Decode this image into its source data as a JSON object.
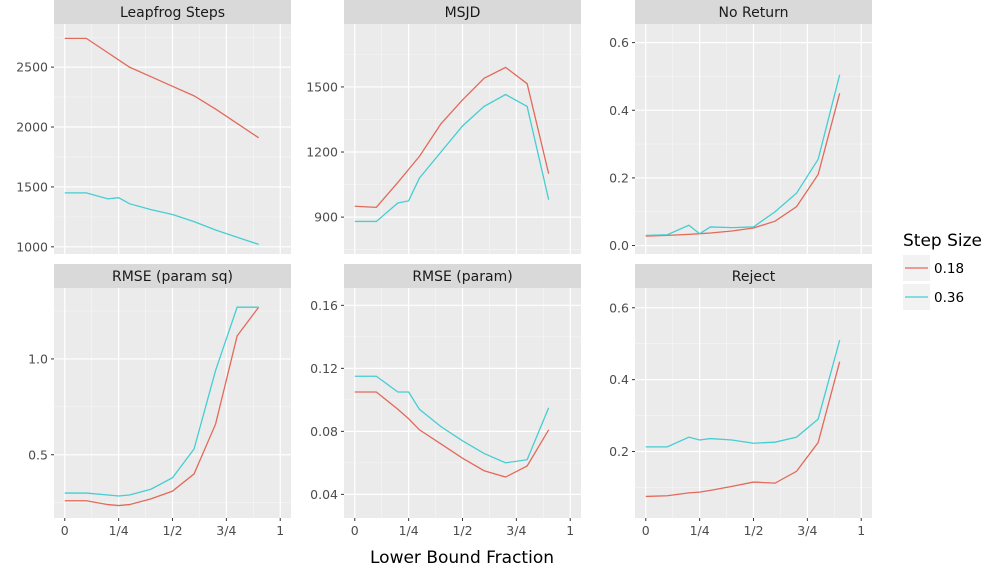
{
  "chart_data": {
    "type": "line",
    "xlabel": "Lower Bound Fraction",
    "x_tick_labels": [
      "0",
      "1/4",
      "1/2",
      "3/4",
      "1"
    ],
    "x_ticks": [
      0,
      0.25,
      0.5,
      0.75,
      1
    ],
    "xlim": [
      -0.05,
      1.05
    ],
    "grid": true,
    "legend": {
      "title": "Step Size",
      "position": "right",
      "entries": [
        "0.18",
        "0.36"
      ]
    },
    "colors": {
      "0.18": "#E26A5B",
      "0.36": "#45CDD2"
    },
    "x": [
      0,
      0.1,
      0.2,
      0.25,
      0.3,
      0.4,
      0.5,
      0.6,
      0.7,
      0.8,
      0.9
    ],
    "panels": [
      {
        "title": "Leapfrog Steps",
        "ylim": [
          940,
          2860
        ],
        "y_ticks": [
          1000,
          1500,
          2000,
          2500
        ],
        "y_tick_labels": [
          "1000",
          "1500",
          "2000",
          "2500"
        ],
        "series": [
          {
            "name": "0.18",
            "values": [
              2740,
              2740,
              2620,
              2560,
              2500,
              2420,
              2340,
              2260,
              2150,
              2030,
              1910
            ]
          },
          {
            "name": "0.36",
            "values": [
              1450,
              1450,
              1400,
              1410,
              1360,
              1310,
              1270,
              1210,
              1140,
              1080,
              1020
            ]
          }
        ]
      },
      {
        "title": "MSJD",
        "ylim": [
          730,
          1790
        ],
        "y_ticks": [
          900,
          1200,
          1500
        ],
        "y_tick_labels": [
          "900",
          "1200",
          "1500"
        ],
        "series": [
          {
            "name": "0.18",
            "values": [
              950,
              945,
              1060,
              1120,
              1180,
              1330,
              1440,
              1540,
              1590,
              1515,
              1100
            ]
          },
          {
            "name": "0.36",
            "values": [
              880,
              880,
              965,
              975,
              1080,
              1200,
              1320,
              1410,
              1465,
              1410,
              980
            ]
          }
        ]
      },
      {
        "title": "No Return",
        "ylim": [
          -0.025,
          0.655
        ],
        "y_ticks": [
          0.0,
          0.2,
          0.4,
          0.6
        ],
        "y_tick_labels": [
          "0.0",
          "0.2",
          "0.4",
          "0.6"
        ],
        "series": [
          {
            "name": "0.18",
            "values": [
              0.028,
              0.03,
              0.033,
              0.035,
              0.037,
              0.043,
              0.052,
              0.072,
              0.115,
              0.21,
              0.45
            ]
          },
          {
            "name": "0.36",
            "values": [
              0.03,
              0.032,
              0.06,
              0.035,
              0.055,
              0.053,
              0.055,
              0.1,
              0.155,
              0.255,
              0.505
            ]
          }
        ]
      },
      {
        "title": "RMSE (param sq)",
        "ylim": [
          0.17,
          1.37
        ],
        "y_ticks": [
          0.5,
          1.0
        ],
        "y_tick_labels": [
          "0.5",
          "1.0"
        ],
        "series": [
          {
            "name": "0.18",
            "values": [
              0.26,
              0.26,
              0.24,
              0.235,
              0.24,
              0.27,
              0.31,
              0.4,
              0.66,
              1.12,
              1.27
            ]
          },
          {
            "name": "0.36",
            "values": [
              0.3,
              0.3,
              0.29,
              0.285,
              0.29,
              0.32,
              0.38,
              0.53,
              0.94,
              1.27,
              1.27
            ]
          }
        ]
      },
      {
        "title": "RMSE (param)",
        "ylim": [
          0.025,
          0.171
        ],
        "y_ticks": [
          0.04,
          0.08,
          0.12,
          0.16
        ],
        "y_tick_labels": [
          "0.04",
          "0.08",
          "0.12",
          "0.16"
        ],
        "series": [
          {
            "name": "0.18",
            "values": [
              0.105,
              0.105,
              0.094,
              0.088,
              0.081,
              0.072,
              0.063,
              0.055,
              0.051,
              0.058,
              0.081
            ]
          },
          {
            "name": "0.36",
            "values": [
              0.115,
              0.115,
              0.105,
              0.105,
              0.094,
              0.083,
              0.074,
              0.066,
              0.06,
              0.062,
              0.095
            ]
          }
        ]
      },
      {
        "title": "Reject",
        "ylim": [
          0.015,
          0.655
        ],
        "y_ticks": [
          0.2,
          0.4,
          0.6
        ],
        "y_tick_labels": [
          "0.2",
          "0.4",
          "0.6"
        ],
        "series": [
          {
            "name": "0.18",
            "values": [
              0.075,
              0.077,
              0.085,
              0.087,
              0.092,
              0.103,
              0.115,
              0.112,
              0.145,
              0.225,
              0.45
            ]
          },
          {
            "name": "0.36",
            "values": [
              0.213,
              0.213,
              0.24,
              0.232,
              0.236,
              0.232,
              0.223,
              0.226,
              0.24,
              0.29,
              0.51
            ]
          }
        ]
      }
    ]
  }
}
